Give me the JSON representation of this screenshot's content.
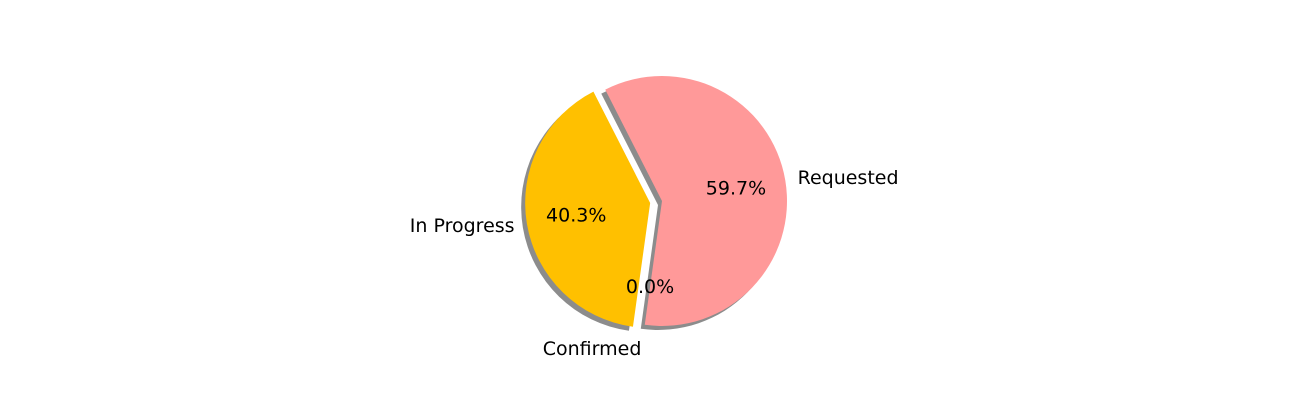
{
  "chart_data": {
    "type": "pie",
    "title": "",
    "slices": [
      {
        "label": "Requested",
        "value": 59.7,
        "pct_label": "59.7%",
        "color": "#ff9999",
        "exploded": false
      },
      {
        "label": "Confirmed",
        "value": 0.0,
        "pct_label": "0.0%",
        "color": "#66b3ff",
        "exploded": true
      },
      {
        "label": "In Progress",
        "value": 40.3,
        "pct_label": "40.3%",
        "color": "#ffc000",
        "exploded": true
      }
    ],
    "start_angle_deg": 117,
    "direction": "clockwise",
    "shadow": true,
    "legend": "none"
  }
}
